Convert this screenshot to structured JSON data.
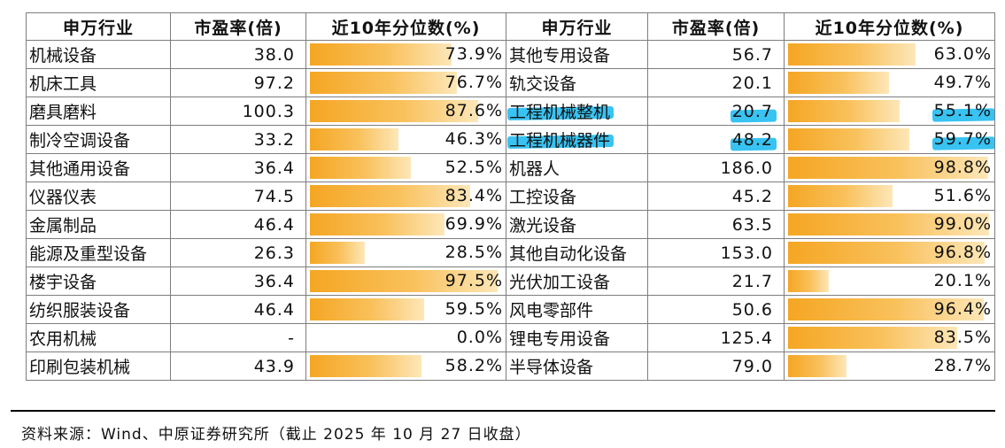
{
  "headers": {
    "industry": "申万行业",
    "pe": "市盈率(倍)",
    "percentile": "近10年分位数(%)"
  },
  "highlight_color": "#00b2ee",
  "bar_color": "#f5a623",
  "left_rows": [
    {
      "name": "机械设备",
      "pe": "38.0",
      "pct": "73.9%",
      "level": 73.9
    },
    {
      "name": "机床工具",
      "pe": "97.2",
      "pct": "76.7%",
      "level": 76.7
    },
    {
      "name": "磨具磨料",
      "pe": "100.3",
      "pct": "87.6%",
      "level": 87.6
    },
    {
      "name": "制冷空调设备",
      "pe": "33.2",
      "pct": "46.3%",
      "level": 46.3
    },
    {
      "name": "其他通用设备",
      "pe": "36.4",
      "pct": "52.5%",
      "level": 52.5
    },
    {
      "name": "仪器仪表",
      "pe": "74.5",
      "pct": "83.4%",
      "level": 83.4
    },
    {
      "name": "金属制品",
      "pe": "46.4",
      "pct": "69.9%",
      "level": 69.9
    },
    {
      "name": "能源及重型设备",
      "pe": "26.3",
      "pct": "28.5%",
      "level": 28.5
    },
    {
      "name": "楼宇设备",
      "pe": "36.4",
      "pct": "97.5%",
      "level": 97.5
    },
    {
      "name": "纺织服装设备",
      "pe": "46.4",
      "pct": "59.5%",
      "level": 59.5
    },
    {
      "name": "农用机械",
      "pe": "-",
      "pct": "0.0%",
      "level": 0.0
    },
    {
      "name": "印刷包装机械",
      "pe": "43.9",
      "pct": "58.2%",
      "level": 58.2
    }
  ],
  "right_rows": [
    {
      "name": "其他专用设备",
      "pe": "56.7",
      "pct": "63.0%",
      "level": 63.0,
      "highlight": false
    },
    {
      "name": "轨交设备",
      "pe": "20.1",
      "pct": "49.7%",
      "level": 49.7,
      "highlight": false
    },
    {
      "name": "工程机械整机",
      "pe": "20.7",
      "pct": "55.1%",
      "level": 55.1,
      "highlight": true
    },
    {
      "name": "工程机械器件",
      "pe": "48.2",
      "pct": "59.7%",
      "level": 59.7,
      "highlight": true
    },
    {
      "name": "机器人",
      "pe": "186.0",
      "pct": "98.8%",
      "level": 98.8,
      "highlight": false
    },
    {
      "name": "工控设备",
      "pe": "45.2",
      "pct": "51.6%",
      "level": 51.6,
      "highlight": false
    },
    {
      "name": "激光设备",
      "pe": "63.5",
      "pct": "99.0%",
      "level": 99.0,
      "highlight": false
    },
    {
      "name": "其他自动化设备",
      "pe": "153.0",
      "pct": "96.8%",
      "level": 96.8,
      "highlight": false
    },
    {
      "name": "光伏加工设备",
      "pe": "21.7",
      "pct": "20.1%",
      "level": 20.1,
      "highlight": false
    },
    {
      "name": "风电零部件",
      "pe": "50.6",
      "pct": "96.4%",
      "level": 96.4,
      "highlight": false
    },
    {
      "name": "锂电专用设备",
      "pe": "125.4",
      "pct": "83.5%",
      "level": 83.5,
      "highlight": false
    },
    {
      "name": "半导体设备",
      "pe": "79.0",
      "pct": "28.7%",
      "level": 28.7,
      "highlight": false
    }
  ],
  "source_note": "资料来源：Wind、中原证券研究所（截止 2025 年 10 月 27 日收盘）"
}
